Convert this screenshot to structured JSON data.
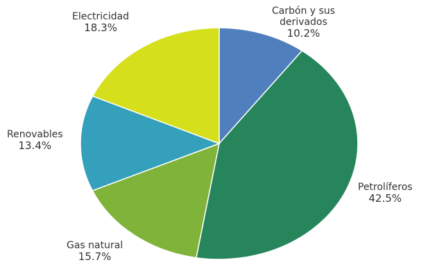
{
  "chart_data": {
    "type": "pie",
    "title": "",
    "slices": [
      {
        "label": "Carbón y sus derivados",
        "label_lines": [
          "Carbón y sus",
          "derivados"
        ],
        "value": 10.2,
        "display": "10.2%",
        "color": "#4f7fbd"
      },
      {
        "label": "Petrolíferos",
        "label_lines": [
          "Petrolíferos"
        ],
        "value": 42.5,
        "display": "42.5%",
        "color": "#26855a"
      },
      {
        "label": "Gas natural",
        "label_lines": [
          "Gas natural"
        ],
        "value": 15.7,
        "display": "15.7%",
        "color": "#7fb33a"
      },
      {
        "label": "Renovables",
        "label_lines": [
          "Renovables"
        ],
        "value": 13.4,
        "display": "13.4%",
        "color": "#35a0bc"
      },
      {
        "label": "Electricidad",
        "label_lines": [
          "Electricidad"
        ],
        "value": 18.3,
        "display": "18.3%",
        "color": "#d6df1c"
      }
    ],
    "start": "12 o'clock",
    "direction": "clockwise"
  }
}
